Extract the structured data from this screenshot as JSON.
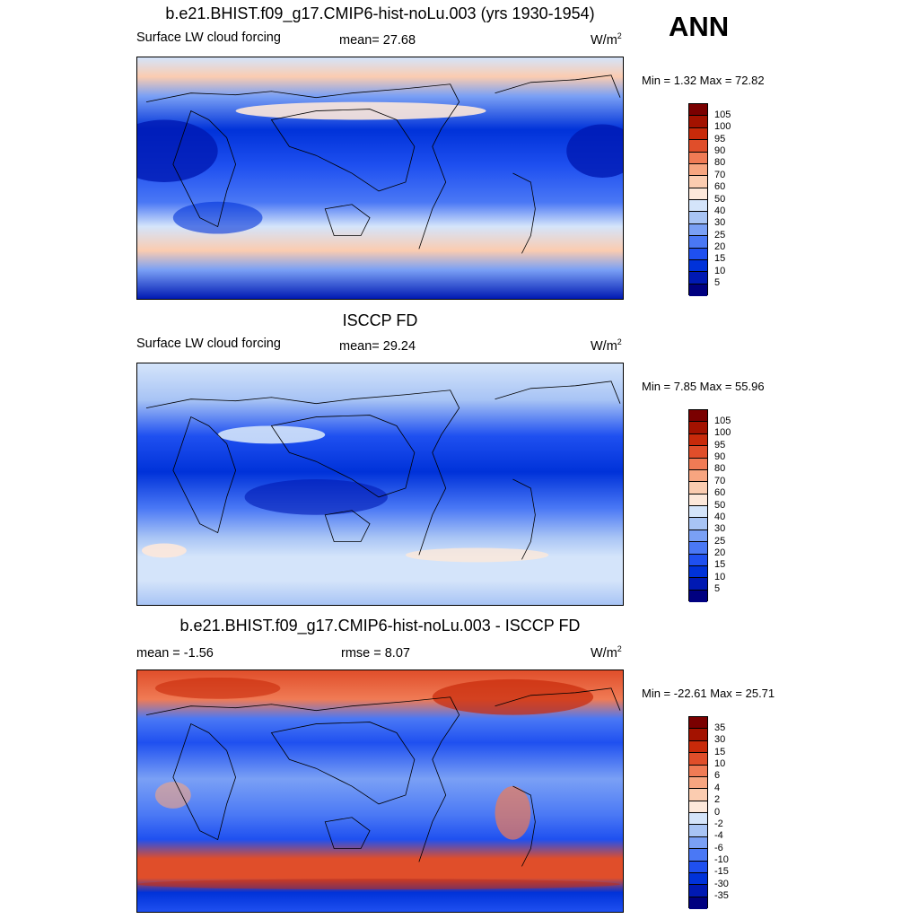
{
  "season": "ANN",
  "panels": [
    {
      "title": "b.e21.BHIST.f09_g17.CMIP6-hist-noLu.003 (yrs 1930-1954)",
      "left_label": "Surface LW cloud forcing",
      "center_label": "mean=  27.68",
      "units": "W/m",
      "units_exp": "2",
      "minmax": "Min =   1.32 Max =  72.82",
      "colorbar_ticks": [
        "105",
        "100",
        "95",
        "90",
        "80",
        "70",
        "60",
        "50",
        "40",
        "30",
        "25",
        "20",
        "15",
        "10",
        "5"
      ],
      "colors": [
        "#000080",
        "#0019b3",
        "#0032d9",
        "#1f50f0",
        "#4a78f5",
        "#7aa0f5",
        "#a8c4f5",
        "#d4e4fa",
        "#fde8da",
        "#fbccb0",
        "#f7a580",
        "#f07b55",
        "#e04e2a",
        "#c82a0a",
        "#a31200",
        "#7a0000"
      ]
    },
    {
      "title": "ISCCP FD",
      "left_label": "Surface LW cloud forcing",
      "center_label": "mean=  29.24",
      "units": "W/m",
      "units_exp": "2",
      "minmax": "Min =   7.85 Max =  55.96",
      "colorbar_ticks": [
        "105",
        "100",
        "95",
        "90",
        "80",
        "70",
        "60",
        "50",
        "40",
        "30",
        "25",
        "20",
        "15",
        "10",
        "5"
      ],
      "colors": [
        "#000080",
        "#0019b3",
        "#0032d9",
        "#1f50f0",
        "#4a78f5",
        "#7aa0f5",
        "#a8c4f5",
        "#d4e4fa",
        "#fde8da",
        "#fbccb0",
        "#f7a580",
        "#f07b55",
        "#e04e2a",
        "#c82a0a",
        "#a31200",
        "#7a0000"
      ]
    },
    {
      "title": "b.e21.BHIST.f09_g17.CMIP6-hist-noLu.003 - ISCCP FD",
      "left_label": "mean =  -1.56",
      "center_label": "rmse =   8.07",
      "units": "W/m",
      "units_exp": "2",
      "minmax": "Min = -22.61 Max =  25.71",
      "colorbar_ticks": [
        "35",
        "30",
        "15",
        "10",
        "6",
        "4",
        "2",
        "0",
        "-2",
        "-4",
        "-6",
        "-10",
        "-15",
        "-30",
        "-35"
      ],
      "colors": [
        "#000080",
        "#0019b3",
        "#0032d9",
        "#1f50f0",
        "#4a78f5",
        "#7aa0f5",
        "#a8c4f5",
        "#d4e4fa",
        "#fde8da",
        "#fbccb0",
        "#f7a580",
        "#f07b55",
        "#e04e2a",
        "#c82a0a",
        "#a31200",
        "#7a0000"
      ]
    }
  ]
}
